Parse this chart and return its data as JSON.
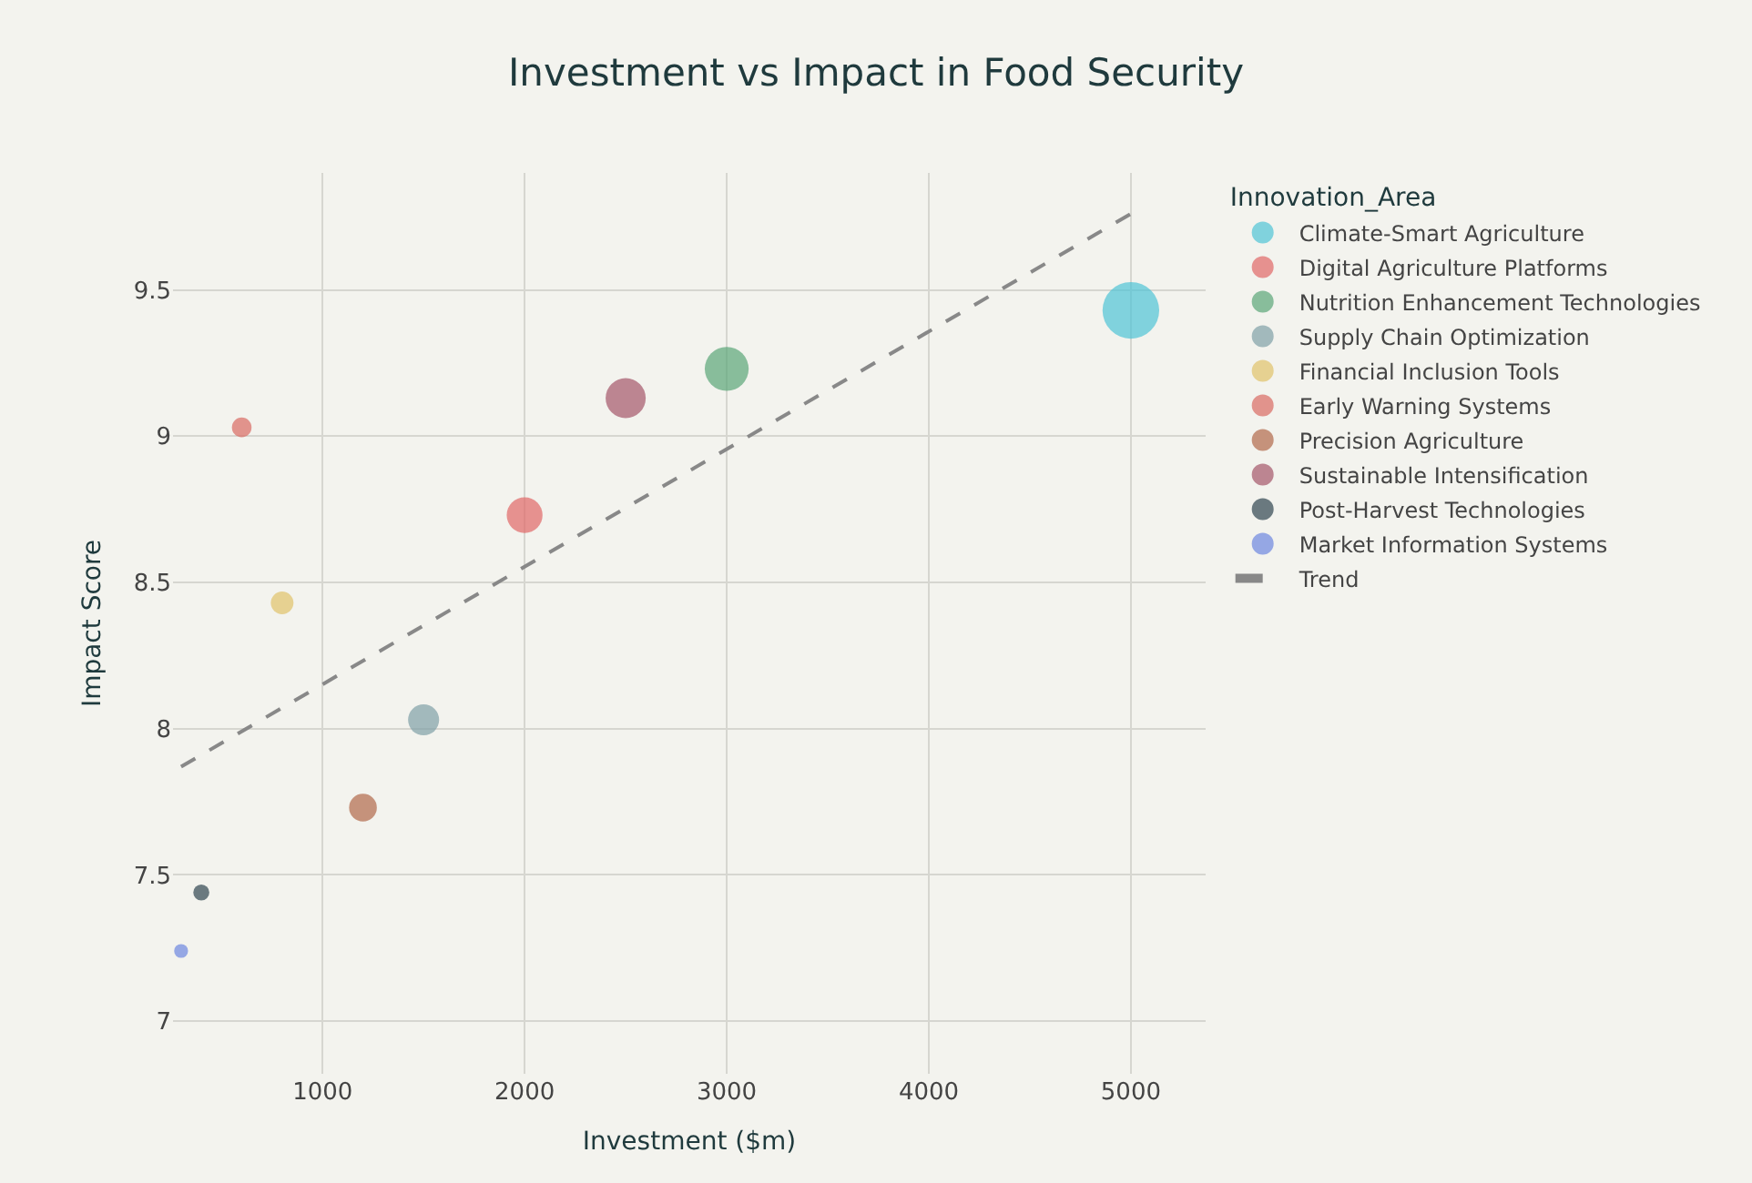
{
  "chart_data": {
    "type": "bubble",
    "title": "Investment vs Impact in Food Security",
    "xlabel": "Investment ($m)",
    "ylabel": "Impact Score",
    "legend_title": "Innovation_Area",
    "xlim": [
      260,
      5370
    ],
    "ylim": [
      6.82,
      9.9
    ],
    "xticks": [
      1000,
      2000,
      3000,
      4000,
      5000
    ],
    "yticks": [
      7,
      7.5,
      8,
      8.5,
      9,
      9.5
    ],
    "grid": true,
    "legend": "top right",
    "marker": "circle",
    "series": [
      {
        "name": "Climate-Smart Agriculture",
        "color": "#4fc3d5",
        "x": [
          5000
        ],
        "values": [
          9.43
        ],
        "sizes": [
          1
        ]
      },
      {
        "name": "Digital Agriculture Platforms",
        "color": "#e06666",
        "x": [
          2000
        ],
        "values": [
          8.73
        ],
        "sizes": [
          0.4
        ]
      },
      {
        "name": "Nutrition Enhancement Technologies",
        "color": "#5aa578",
        "x": [
          3000
        ],
        "values": [
          9.23
        ],
        "sizes": [
          0.6
        ]
      },
      {
        "name": "Supply Chain Optimization",
        "color": "#7fa0a6",
        "x": [
          1500
        ],
        "values": [
          8.03
        ],
        "sizes": [
          0.3
        ]
      },
      {
        "name": "Financial Inclusion Tools",
        "color": "#e0c26a",
        "x": [
          800
        ],
        "values": [
          8.43
        ],
        "sizes": [
          0.16
        ]
      },
      {
        "name": "Early Warning Systems",
        "color": "#d96a63",
        "x": [
          600
        ],
        "values": [
          9.03
        ],
        "sizes": [
          0.12
        ]
      },
      {
        "name": "Precision Agriculture",
        "color": "#b0684a",
        "x": [
          1200
        ],
        "values": [
          7.73
        ],
        "sizes": [
          0.24
        ]
      },
      {
        "name": "Sustainable Intensification",
        "color": "#a4566a",
        "x": [
          2500
        ],
        "values": [
          9.13
        ],
        "sizes": [
          0.5
        ]
      },
      {
        "name": "Post-Harvest Technologies",
        "color": "#2f4550",
        "x": [
          400
        ],
        "values": [
          7.44
        ],
        "sizes": [
          0.08
        ]
      },
      {
        "name": "Market Information Systems",
        "color": "#6c86e0",
        "x": [
          300
        ],
        "values": [
          7.24
        ],
        "sizes": [
          0.06
        ]
      },
      {
        "name": "Trend",
        "type": "line",
        "color": "#888888",
        "line_style": "dashed",
        "marker": "none",
        "x": [
          300,
          5000
        ],
        "values": [
          7.87,
          9.76
        ]
      }
    ]
  }
}
